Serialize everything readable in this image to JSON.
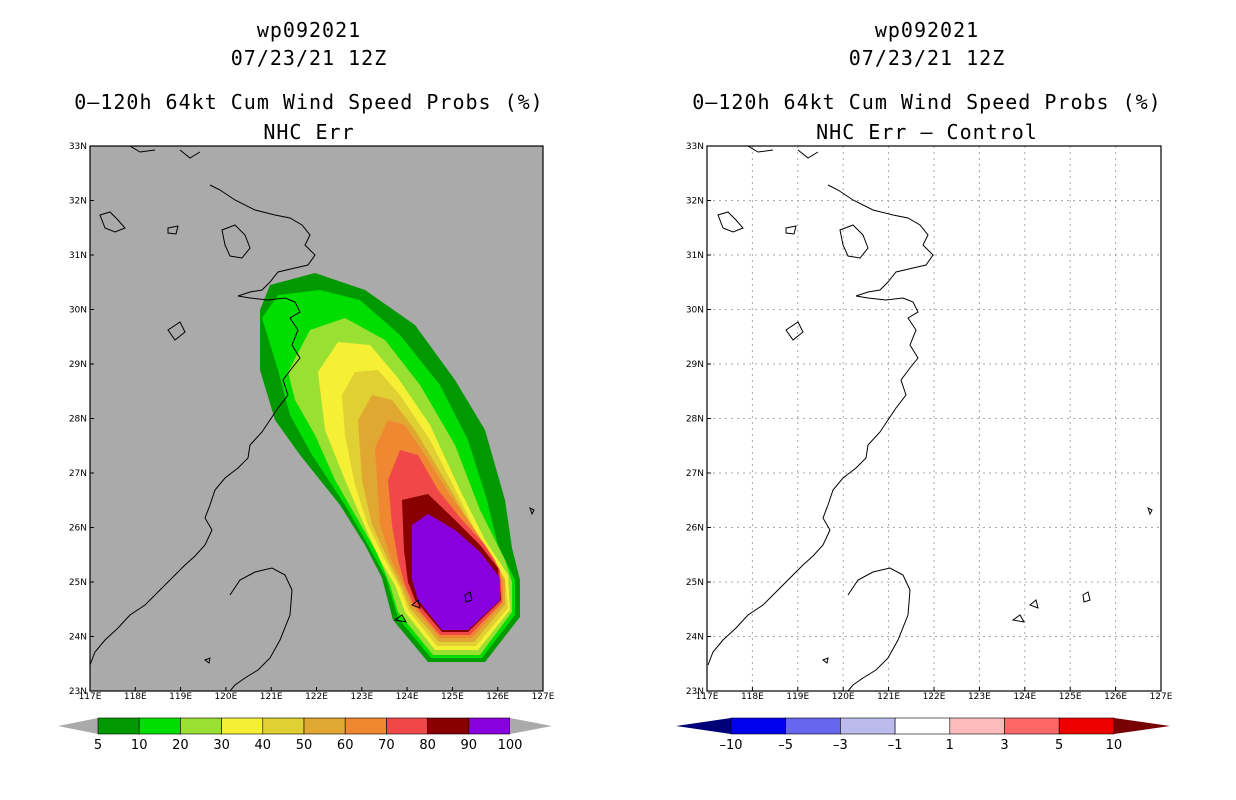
{
  "colors": {
    "land_gray": "#aaaaaa",
    "coast": "#000000",
    "grid": "#aaaaaa",
    "prob_fill": [
      "#009900",
      "#00dd00",
      "#99e033",
      "#f5f033",
      "#e0d033",
      "#e0a830",
      "#ef8830",
      "#f04848",
      "#880000",
      "#8800dd"
    ],
    "diff_fill": [
      "#000077",
      "#0000ee",
      "#6666ee",
      "#bbbbee",
      "#ffffff",
      "#ffbbbb",
      "#ff6666",
      "#ee0000",
      "#770000"
    ]
  },
  "left": {
    "title1": "wp092021",
    "title2": "07/23/21 12Z",
    "title3": "0–120h 64kt Cum Wind Speed Probs (%)",
    "title4": "NHC Err",
    "colorbar_labels": [
      "5",
      "10",
      "20",
      "30",
      "40",
      "50",
      "60",
      "70",
      "80",
      "90",
      "100"
    ]
  },
  "right": {
    "title1": "wp092021",
    "title2": "07/23/21 12Z",
    "title3": "0–120h 64kt Cum Wind Speed Probs (%)",
    "title4": "NHC Err – Control",
    "colorbar_labels": [
      "–10",
      "–5",
      "–3",
      "–1",
      "1",
      "3",
      "5",
      "10"
    ]
  },
  "map": {
    "lon_labels": [
      "117E",
      "118E",
      "119E",
      "120E",
      "121E",
      "122E",
      "123E",
      "124E",
      "125E",
      "126E",
      "127E"
    ],
    "lat_labels": [
      "33N",
      "32N",
      "31N",
      "30N",
      "29N",
      "28N",
      "27N",
      "26N",
      "25N",
      "24N",
      "23N"
    ]
  }
}
